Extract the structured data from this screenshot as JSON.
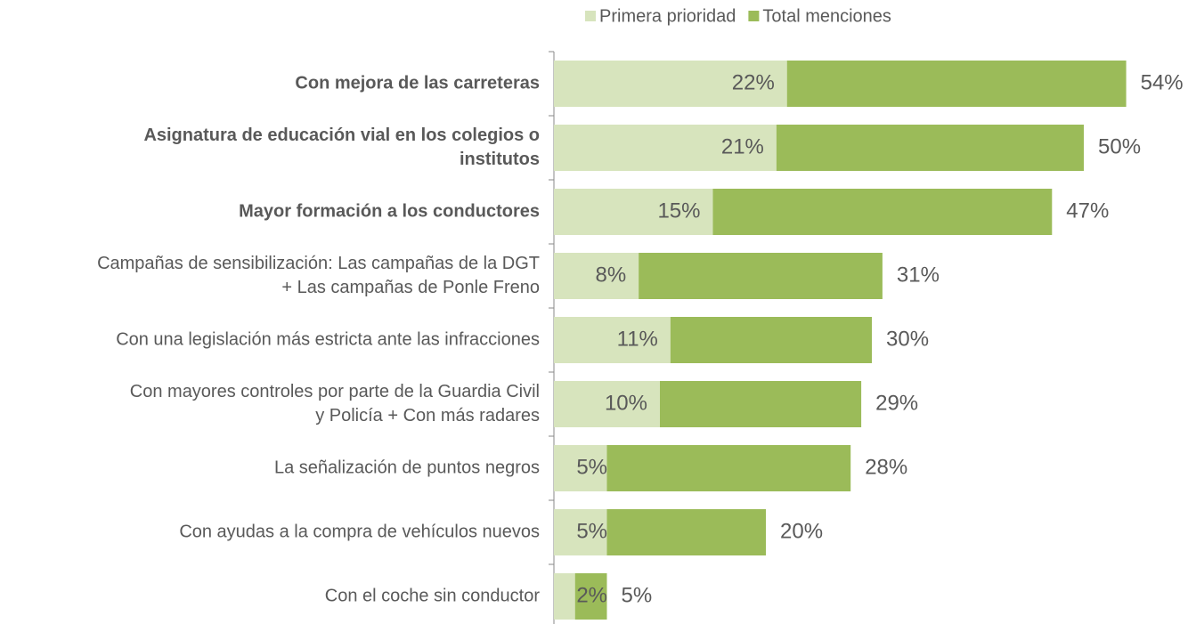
{
  "chart_data": {
    "type": "bar",
    "orientation": "horizontal",
    "overlap": true,
    "legend": "top",
    "categories": [
      "Con mejora de las carreteras",
      "Asignatura de educación vial en los colegios o\ninstitutos",
      "Mayor formación a los conductores",
      "Campañas de sensibilización: Las campañas de la DGT\n+ Las campañas de Ponle Freno",
      "Con una legislación más estricta ante las infracciones",
      "Con mayores controles por parte de la Guardia Civil\ny Policía + Con más radares",
      "La señalización de puntos negros",
      "Con ayudas a la compra de vehículos nuevos",
      "Con el coche sin conductor"
    ],
    "bold_categories": [
      true,
      true,
      true,
      false,
      false,
      false,
      false,
      false,
      false
    ],
    "series": [
      {
        "name": "Total menciones",
        "color": "#9bbb59",
        "values": [
          54,
          50,
          47,
          31,
          30,
          29,
          28,
          20,
          5
        ],
        "value_labels": [
          "54%",
          "50%",
          "47%",
          "31%",
          "30%",
          "29%",
          "28%",
          "20%",
          "5%"
        ]
      },
      {
        "name": "Primera prioridad",
        "color": "#d7e4bd",
        "values": [
          22,
          21,
          15,
          8,
          11,
          10,
          5,
          5,
          2
        ],
        "value_labels": [
          "22%",
          "21%",
          "15%",
          "8%",
          "11%",
          "10%",
          "5%",
          "5%",
          "2%"
        ]
      }
    ]
  }
}
